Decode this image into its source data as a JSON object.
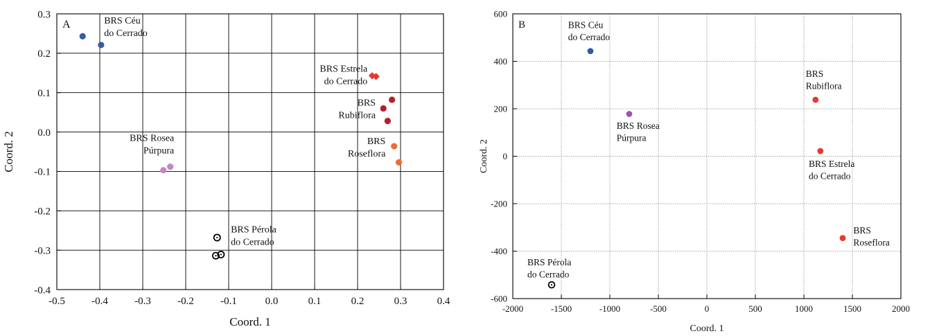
{
  "chart_data": [
    {
      "type": "scatter",
      "panel_label": "A",
      "xlabel": "Coord. 1",
      "ylabel": "Coord. 2",
      "xlim": [
        -0.5,
        0.4
      ],
      "ylim": [
        -0.4,
        0.3
      ],
      "xticks": [
        -0.5,
        -0.4,
        -0.3,
        -0.2,
        -0.1,
        0.0,
        0.1,
        0.2,
        0.3,
        0.4
      ],
      "xtick_labels": [
        "-0.5",
        "-0.4",
        "-0.3",
        "-0.2",
        "-0.1",
        "0.0",
        "0.1",
        "0.2",
        "0.3",
        "0.4"
      ],
      "yticks": [
        -0.4,
        -0.3,
        -0.2,
        -0.1,
        0.0,
        0.1,
        0.2,
        0.3
      ],
      "ytick_labels": [
        "-0.4",
        "-0.3",
        "-0.2",
        "-0.1",
        "0.0",
        "0.1",
        "0.2",
        "0.3"
      ],
      "grid": "solid",
      "series": [
        {
          "name": "BRS Céu do Cerrado",
          "color": "#3a5aa8",
          "marker": "dot",
          "points": [
            [
              -0.44,
              0.243
            ],
            [
              -0.397,
              0.221
            ]
          ],
          "label_lines": [
            "BRS Céu",
            "do Cerrado"
          ],
          "label_anchor": "start",
          "label_at": [
            -0.39,
            0.275
          ]
        },
        {
          "name": "BRS Estrela do Cerrado",
          "color": "#e8392b",
          "marker": "diamond",
          "points": [
            [
              0.234,
              0.143
            ],
            [
              0.243,
              0.141
            ]
          ],
          "label_lines": [
            "BRS Estrela",
            "do Cerrado"
          ],
          "label_anchor": "end",
          "label_at": [
            0.223,
            0.153
          ]
        },
        {
          "name": "BRS Rubiflora",
          "color": "#b52028",
          "marker": "dot",
          "points": [
            [
              0.28,
              0.082
            ],
            [
              0.26,
              0.06
            ],
            [
              0.27,
              0.028
            ]
          ],
          "label_lines": [
            "BRS",
            "Rubiflora"
          ],
          "label_anchor": "end",
          "label_at": [
            0.242,
            0.067
          ]
        },
        {
          "name": "BRS Rosea Púrpura",
          "color": "#c088c4",
          "marker": "dot",
          "points": [
            [
              -0.236,
              -0.088
            ],
            [
              -0.252,
              -0.097
            ]
          ],
          "label_lines": [
            "BRS Rosea",
            "Púrpura"
          ],
          "label_anchor": "end",
          "label_at": [
            -0.227,
            -0.023
          ]
        },
        {
          "name": "BRS Roseflora",
          "color": "#f06a35",
          "marker": "dot",
          "points": [
            [
              0.285,
              -0.036
            ],
            [
              0.296,
              -0.077
            ]
          ],
          "label_lines": [
            "BRS",
            "Roseflora"
          ],
          "label_anchor": "end",
          "label_at": [
            0.265,
            -0.031
          ]
        },
        {
          "name": "BRS Pérola do Cerrado",
          "color": "#000000",
          "marker": "ring",
          "points": [
            [
              -0.127,
              -0.268
            ],
            [
              -0.13,
              -0.314
            ],
            [
              -0.118,
              -0.311
            ]
          ],
          "label_lines": [
            "BRS Pérola",
            "do Cerrado"
          ],
          "label_anchor": "start",
          "label_at": [
            -0.095,
            -0.255
          ]
        }
      ]
    },
    {
      "type": "scatter",
      "panel_label": "B",
      "xlabel": "Coord. 1",
      "ylabel": "Coord. 2",
      "xlim": [
        -2000,
        2000
      ],
      "ylim": [
        -600,
        600
      ],
      "xticks": [
        -2000,
        -1500,
        -1000,
        -500,
        0,
        500,
        1000,
        1500,
        2000
      ],
      "xtick_labels": [
        "-2000",
        "-1500",
        "-1000",
        "-500",
        "0",
        "500",
        "1000",
        "1500",
        "2000"
      ],
      "yticks": [
        -600,
        -400,
        -200,
        0,
        200,
        400,
        600
      ],
      "ytick_labels": [
        "-600",
        "-400",
        "-200",
        "0",
        "200",
        "400",
        "600"
      ],
      "grid": "dotted",
      "series": [
        {
          "name": "BRS Céu do Cerrado",
          "color": "#2f5aa6",
          "marker": "dot",
          "points": [
            [
              -1200,
              443
            ]
          ],
          "label_lines": [
            "BRS Céu",
            "do Cerrado"
          ],
          "label_anchor": "start",
          "label_at": [
            -1430,
            540
          ]
        },
        {
          "name": "BRS Rosea Púrpura",
          "color": "#9a55b0",
          "marker": "dot",
          "points": [
            [
              -800,
              178
            ]
          ],
          "label_lines": [
            "BRS Rosea",
            "Púrpura"
          ],
          "label_anchor": "start",
          "label_at": [
            -930,
            115
          ]
        },
        {
          "name": "BRS Rubiflora",
          "color": "#e8392b",
          "marker": "dot",
          "points": [
            [
              1120,
              238
            ]
          ],
          "label_lines": [
            "BRS",
            "Rubiflora"
          ],
          "label_anchor": "start",
          "label_at": [
            1020,
            335
          ]
        },
        {
          "name": "BRS Estrela do Cerrado",
          "color": "#e8392b",
          "marker": "dot",
          "points": [
            [
              1170,
              22
            ]
          ],
          "label_lines": [
            "BRS Estrela",
            "do Cerrado"
          ],
          "label_anchor": "start",
          "label_at": [
            1050,
            -45
          ]
        },
        {
          "name": "BRS Roseflora",
          "color": "#e8392b",
          "marker": "dot",
          "points": [
            [
              1400,
              -345
            ]
          ],
          "label_lines": [
            "BRS",
            "Roseflora"
          ],
          "label_anchor": "start",
          "label_at": [
            1510,
            -325
          ]
        },
        {
          "name": "BRS Pérola do Cerrado",
          "color": "#000000",
          "marker": "ring",
          "points": [
            [
              -1600,
              -542
            ]
          ],
          "label_lines": [
            "BRS Pérola",
            "do Cerrado"
          ],
          "label_anchor": "start",
          "label_at": [
            -1850,
            -460
          ]
        }
      ]
    }
  ]
}
